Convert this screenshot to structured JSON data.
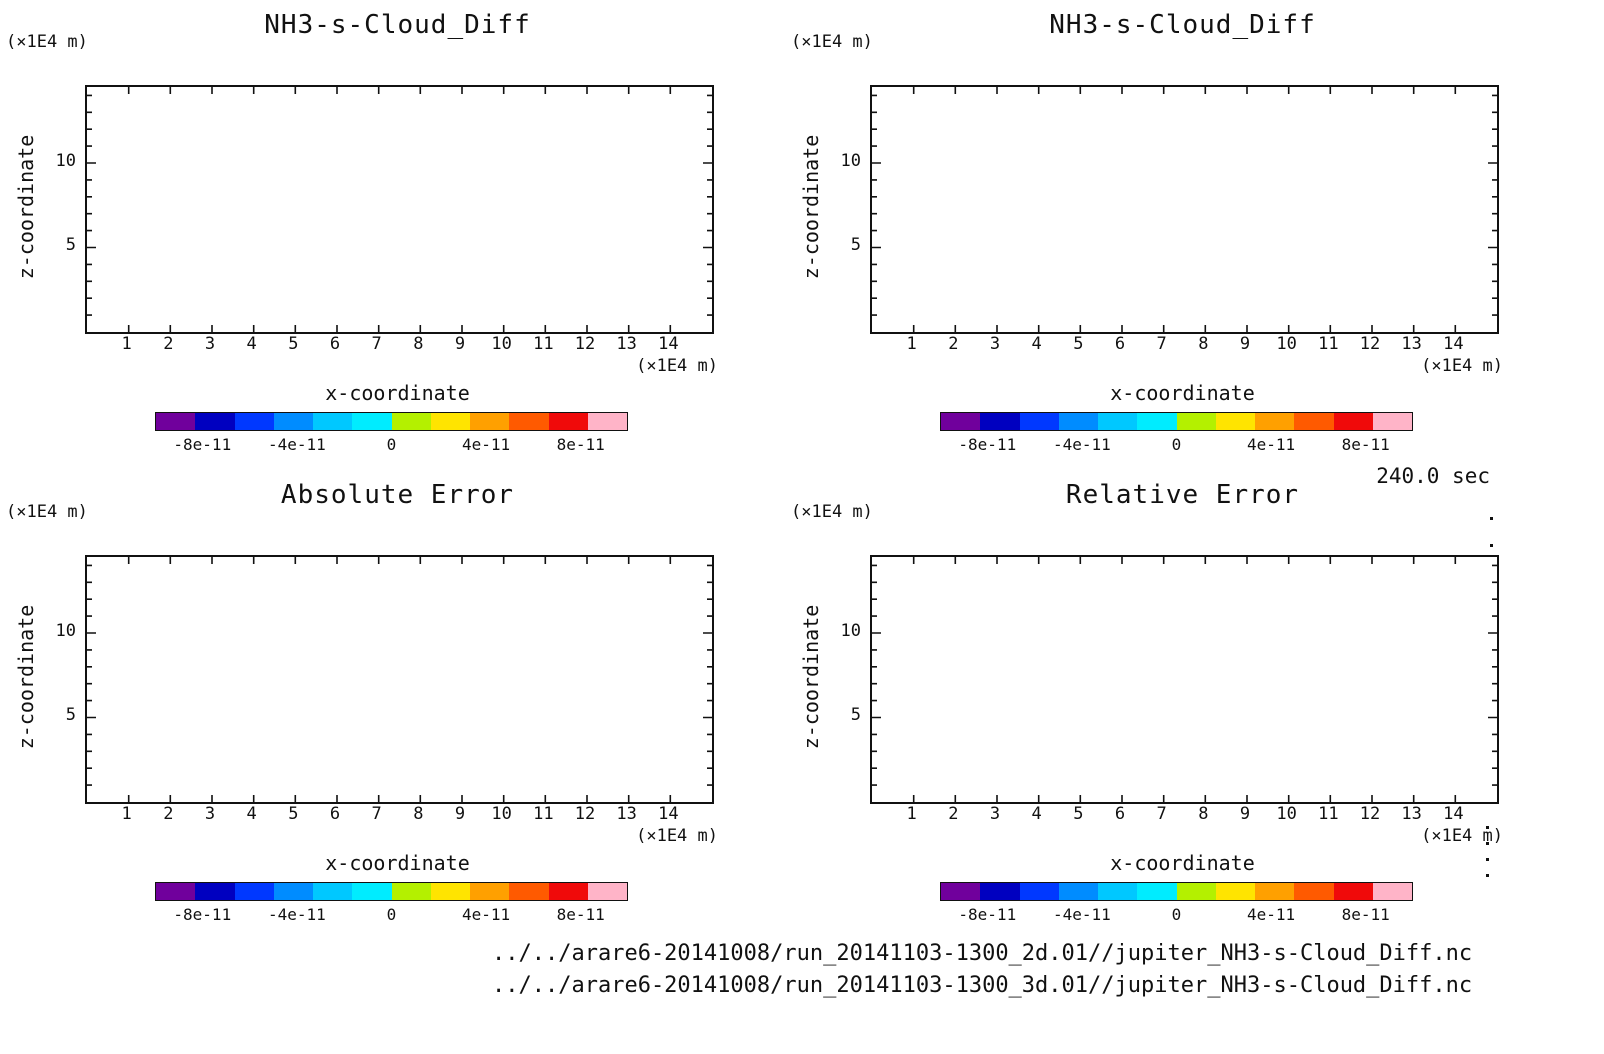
{
  "page": {
    "background": "#ffffff",
    "text_color": "#111111"
  },
  "axis": {
    "x_ticks": [
      "1",
      "2",
      "3",
      "4",
      "5",
      "6",
      "7",
      "8",
      "9",
      "10",
      "11",
      "12",
      "13",
      "14"
    ],
    "y_ticks": [
      "10",
      "5"
    ]
  },
  "colorbar": {
    "colors": [
      "#70009c",
      "#0000c0",
      "#0038ff",
      "#008cff",
      "#00c8ff",
      "#00ecff",
      "#b4f000",
      "#ffe400",
      "#ffa000",
      "#ff5a00",
      "#f00a0a",
      "#ffb4c8"
    ],
    "tick_labels": [
      "-8e-11",
      "-4e-11",
      "0",
      "4e-11",
      "8e-11"
    ]
  },
  "panels": [
    {
      "title": "NH3-s-Cloud_Diff",
      "ylabel": "z-coordinate",
      "xlabel": "x-coordinate",
      "y_unit": "(×1E4 m)",
      "x_unit": "(×1E4 m)"
    },
    {
      "title": "NH3-s-Cloud_Diff",
      "ylabel": "z-coordinate",
      "xlabel": "x-coordinate",
      "y_unit": "(×1E4 m)",
      "x_unit": "(×1E4 m)"
    },
    {
      "title": "Absolute Error",
      "ylabel": "z-coordinate",
      "xlabel": "x-coordinate",
      "y_unit": "(×1E4 m)",
      "x_unit": "(×1E4 m)"
    },
    {
      "title": "Relative Error",
      "ylabel": "z-coordinate",
      "xlabel": "x-coordinate",
      "y_unit": "(×1E4 m)",
      "x_unit": "(×1E4 m)"
    }
  ],
  "time_label": "240.0 sec",
  "footer": {
    "line1": "../../arare6-20141008/run_20141103-1300_2d.01//jupiter_NH3-s-Cloud_Diff.nc",
    "line2": "../../arare6-20141008/run_20141103-1300_3d.01//jupiter_NH3-s-Cloud_Diff.nc"
  },
  "chart_data": [
    {
      "type": "heatmap",
      "title": "NH3-s-Cloud_Diff",
      "xlabel": "x-coordinate",
      "ylabel": "z-coordinate",
      "x_unit": "×1E4 m",
      "y_unit": "×1E4 m",
      "xlim": [
        0,
        15
      ],
      "ylim": [
        0,
        14.5
      ],
      "x_ticks": [
        1,
        2,
        3,
        4,
        5,
        6,
        7,
        8,
        9,
        10,
        11,
        12,
        13,
        14
      ],
      "y_ticks": [
        5,
        10
      ],
      "values": [],
      "appearance": "blank white field; no contours or shading rendered",
      "colorbar_range": [
        -1e-10,
        1e-10
      ],
      "colorbar_ticks": [
        -8e-11,
        -4e-11,
        0,
        4e-11,
        8e-11
      ],
      "grid": false,
      "legend": "horizontal colorbar below plot"
    },
    {
      "type": "heatmap",
      "title": "NH3-s-Cloud_Diff",
      "xlabel": "x-coordinate",
      "ylabel": "z-coordinate",
      "x_unit": "×1E4 m",
      "y_unit": "×1E4 m",
      "xlim": [
        0,
        15
      ],
      "ylim": [
        0,
        14.5
      ],
      "x_ticks": [
        1,
        2,
        3,
        4,
        5,
        6,
        7,
        8,
        9,
        10,
        11,
        12,
        13,
        14
      ],
      "y_ticks": [
        5,
        10
      ],
      "values": [],
      "appearance": "blank white field; no contours or shading rendered",
      "colorbar_range": [
        -1e-10,
        1e-10
      ],
      "colorbar_ticks": [
        -8e-11,
        -4e-11,
        0,
        4e-11,
        8e-11
      ],
      "grid": false,
      "legend": "horizontal colorbar below plot",
      "annotations": [
        "240.0 sec"
      ]
    },
    {
      "type": "heatmap",
      "title": "Absolute Error",
      "xlabel": "x-coordinate",
      "ylabel": "z-coordinate",
      "x_unit": "×1E4 m",
      "y_unit": "×1E4 m",
      "xlim": [
        0,
        15
      ],
      "ylim": [
        0,
        14.5
      ],
      "x_ticks": [
        1,
        2,
        3,
        4,
        5,
        6,
        7,
        8,
        9,
        10,
        11,
        12,
        13,
        14
      ],
      "y_ticks": [
        5,
        10
      ],
      "values": [],
      "appearance": "blank white field; no contours or shading rendered",
      "colorbar_range": [
        -1e-10,
        1e-10
      ],
      "colorbar_ticks": [
        -8e-11,
        -4e-11,
        0,
        4e-11,
        8e-11
      ],
      "grid": false,
      "legend": "horizontal colorbar below plot"
    },
    {
      "type": "heatmap",
      "title": "Relative Error",
      "xlabel": "x-coordinate",
      "ylabel": "z-coordinate",
      "x_unit": "×1E4 m",
      "y_unit": "×1E4 m",
      "xlim": [
        0,
        15
      ],
      "ylim": [
        0,
        14.5
      ],
      "x_ticks": [
        1,
        2,
        3,
        4,
        5,
        6,
        7,
        8,
        9,
        10,
        11,
        12,
        13,
        14
      ],
      "y_ticks": [
        5,
        10
      ],
      "values": [],
      "appearance": "blank white field; no contours or shading rendered",
      "colorbar_range": [
        -1e-10,
        1e-10
      ],
      "colorbar_ticks": [
        -8e-11,
        -4e-11,
        0,
        4e-11,
        8e-11
      ],
      "grid": false,
      "legend": "horizontal colorbar below plot"
    }
  ]
}
